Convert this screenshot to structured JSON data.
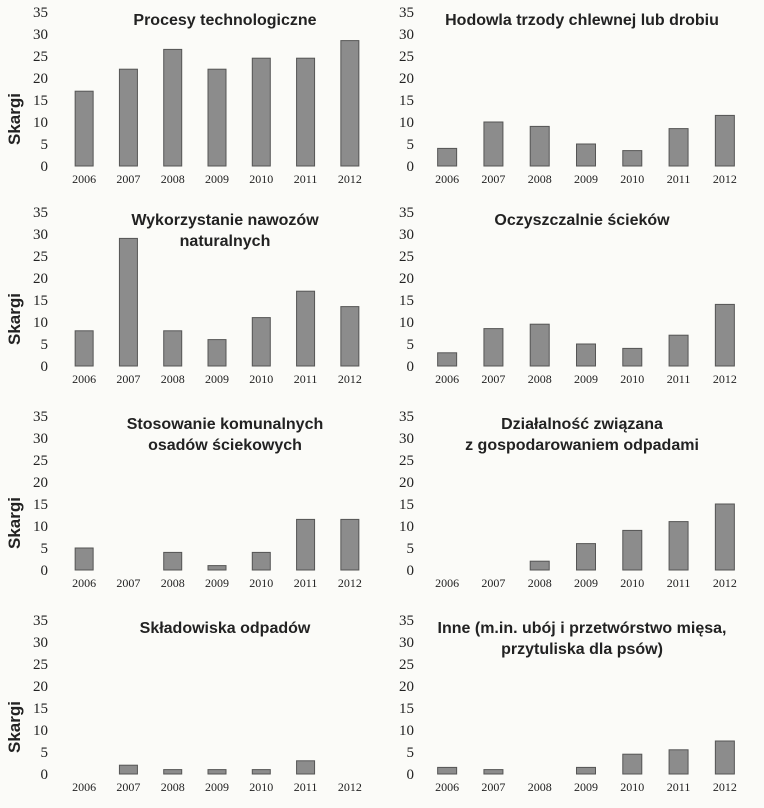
{
  "figure": {
    "ylabel": "Skargi"
  },
  "chart_data": [
    {
      "type": "bar",
      "title": [
        "Procesy technologiczne"
      ],
      "ylabel": "Skargi",
      "categories": [
        "2006",
        "2007",
        "2008",
        "2009",
        "2010",
        "2011",
        "2012"
      ],
      "values": [
        17,
        22,
        26.5,
        22,
        24.5,
        24.5,
        28.5
      ],
      "ylim": [
        0,
        35
      ],
      "yticks": [
        "35",
        "30",
        "25",
        "20",
        "15",
        "10",
        "5",
        "0"
      ]
    },
    {
      "type": "bar",
      "title": [
        "Hodowla trzody chlewnej lub drobiu"
      ],
      "ylabel": "",
      "categories": [
        "2006",
        "2007",
        "2008",
        "2009",
        "2010",
        "2011",
        "2012"
      ],
      "values": [
        4,
        10,
        9,
        5,
        3.5,
        8.5,
        11.5
      ],
      "ylim": [
        0,
        35
      ],
      "yticks": [
        "35",
        "30",
        "25",
        "20",
        "15",
        "10",
        "5",
        "0"
      ]
    },
    {
      "type": "bar",
      "title": [
        "Wykorzystanie nawozów",
        "naturalnych"
      ],
      "ylabel": "Skargi",
      "categories": [
        "2006",
        "2007",
        "2008",
        "2009",
        "2010",
        "2011",
        "2012"
      ],
      "values": [
        8,
        29,
        8,
        6,
        11,
        17,
        13.5
      ],
      "ylim": [
        0,
        35
      ],
      "yticks": [
        "35",
        "30",
        "25",
        "20",
        "15",
        "10",
        "5",
        "0"
      ]
    },
    {
      "type": "bar",
      "title": [
        "Oczyszczalnie ścieków"
      ],
      "ylabel": "",
      "categories": [
        "2006",
        "2007",
        "2008",
        "2009",
        "2010",
        "2011",
        "2012"
      ],
      "values": [
        3,
        8.5,
        9.5,
        5,
        4,
        7,
        14
      ],
      "ylim": [
        0,
        35
      ],
      "yticks": [
        "35",
        "30",
        "25",
        "20",
        "15",
        "10",
        "5",
        "0"
      ]
    },
    {
      "type": "bar",
      "title": [
        "Stosowanie komunalnych",
        "osadów ściekowych"
      ],
      "ylabel": "Skargi",
      "categories": [
        "2006",
        "2007",
        "2008",
        "2009",
        "2010",
        "2011",
        "2012"
      ],
      "values": [
        5,
        0,
        4,
        1,
        4,
        11.5,
        11.5
      ],
      "ylim": [
        0,
        35
      ],
      "yticks": [
        "35",
        "30",
        "25",
        "20",
        "15",
        "10",
        "5",
        "0"
      ]
    },
    {
      "type": "bar",
      "title": [
        "Działalność związana",
        "z gospodarowaniem odpadami"
      ],
      "ylabel": "",
      "categories": [
        "2006",
        "2007",
        "2008",
        "2009",
        "2010",
        "2011",
        "2012"
      ],
      "values": [
        0,
        0,
        2,
        6,
        9,
        11,
        15
      ],
      "ylim": [
        0,
        35
      ],
      "yticks": [
        "35",
        "30",
        "25",
        "20",
        "15",
        "10",
        "5",
        "0"
      ]
    },
    {
      "type": "bar",
      "title": [
        "Składowiska odpadów"
      ],
      "ylabel": "Skargi",
      "categories": [
        "2006",
        "2007",
        "2008",
        "2009",
        "2010",
        "2011",
        "2012"
      ],
      "values": [
        0,
        2,
        1,
        1,
        1,
        3,
        0
      ],
      "ylim": [
        0,
        35
      ],
      "yticks": [
        "35",
        "30",
        "25",
        "20",
        "15",
        "10",
        "5",
        "0"
      ]
    },
    {
      "type": "bar",
      "title": [
        "Inne (m.in. ubój i przetwórstwo mięsa,",
        "przytuliska dla psów)"
      ],
      "ylabel": "",
      "categories": [
        "2006",
        "2007",
        "2008",
        "2009",
        "2010",
        "2011",
        "2012"
      ],
      "values": [
        1.5,
        1,
        0,
        1.5,
        4.5,
        5.5,
        7.5
      ],
      "ylim": [
        0,
        35
      ],
      "yticks": [
        "35",
        "30",
        "25",
        "20",
        "15",
        "10",
        "5",
        "0"
      ]
    }
  ]
}
